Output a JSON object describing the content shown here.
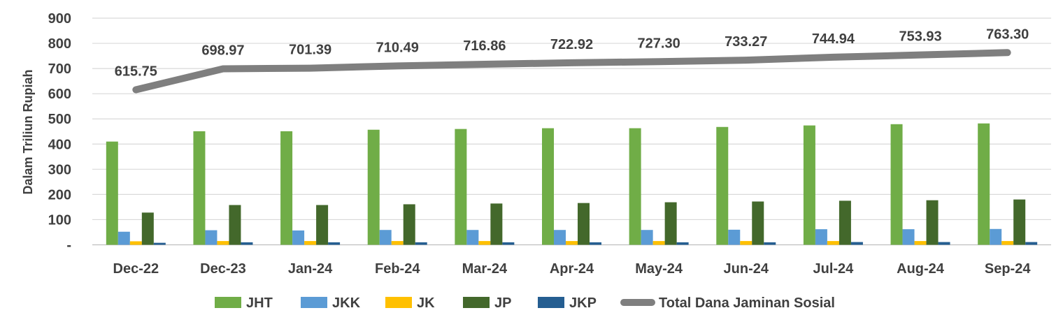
{
  "chart_data": {
    "type": "bar",
    "categories": [
      "Dec-22",
      "Dec-23",
      "Jan-24",
      "Feb-24",
      "Mar-24",
      "Apr-24",
      "May-24",
      "Jun-24",
      "Jul-24",
      "Aug-24",
      "Sep-24"
    ],
    "ylabel": "Dalam Triliun Rupiah",
    "ylim": [
      0,
      900
    ],
    "yticks": [
      "-",
      "100",
      "200",
      "300",
      "400",
      "500",
      "600",
      "700",
      "800",
      "900"
    ],
    "grid": true,
    "legend_position": "bottom",
    "series": [
      {
        "name": "JHT",
        "color": "#70AD47",
        "values": [
          410,
          451,
          451,
          457,
          460,
          463,
          463,
          468,
          474,
          479,
          482
        ]
      },
      {
        "name": "JKK",
        "color": "#5B9BD5",
        "values": [
          52,
          58,
          57,
          59,
          59,
          59,
          59,
          60,
          62,
          62,
          63
        ]
      },
      {
        "name": "JK",
        "color": "#FFC000",
        "values": [
          14,
          15,
          15,
          15,
          15,
          15,
          15,
          15,
          15,
          15,
          15
        ]
      },
      {
        "name": "JP",
        "color": "#43682B",
        "values": [
          128,
          158,
          158,
          161,
          164,
          166,
          169,
          172,
          175,
          177,
          180
        ]
      },
      {
        "name": "JKP",
        "color": "#255E91",
        "values": [
          8,
          10,
          10,
          10,
          10,
          10,
          10,
          10,
          11,
          11,
          11
        ]
      }
    ],
    "line_series": {
      "name": "Total Dana Jaminan Sosial",
      "color": "#7F7F7F",
      "values": [
        615.75,
        698.97,
        701.39,
        710.49,
        716.86,
        722.92,
        727.3,
        733.27,
        744.94,
        753.93,
        763.3
      ],
      "labels": [
        "615.75",
        "698.97",
        "701.39",
        "710.49",
        "716.86",
        "722.92",
        "727.30",
        "733.27",
        "744.94",
        "753.93",
        "763.30"
      ]
    }
  }
}
